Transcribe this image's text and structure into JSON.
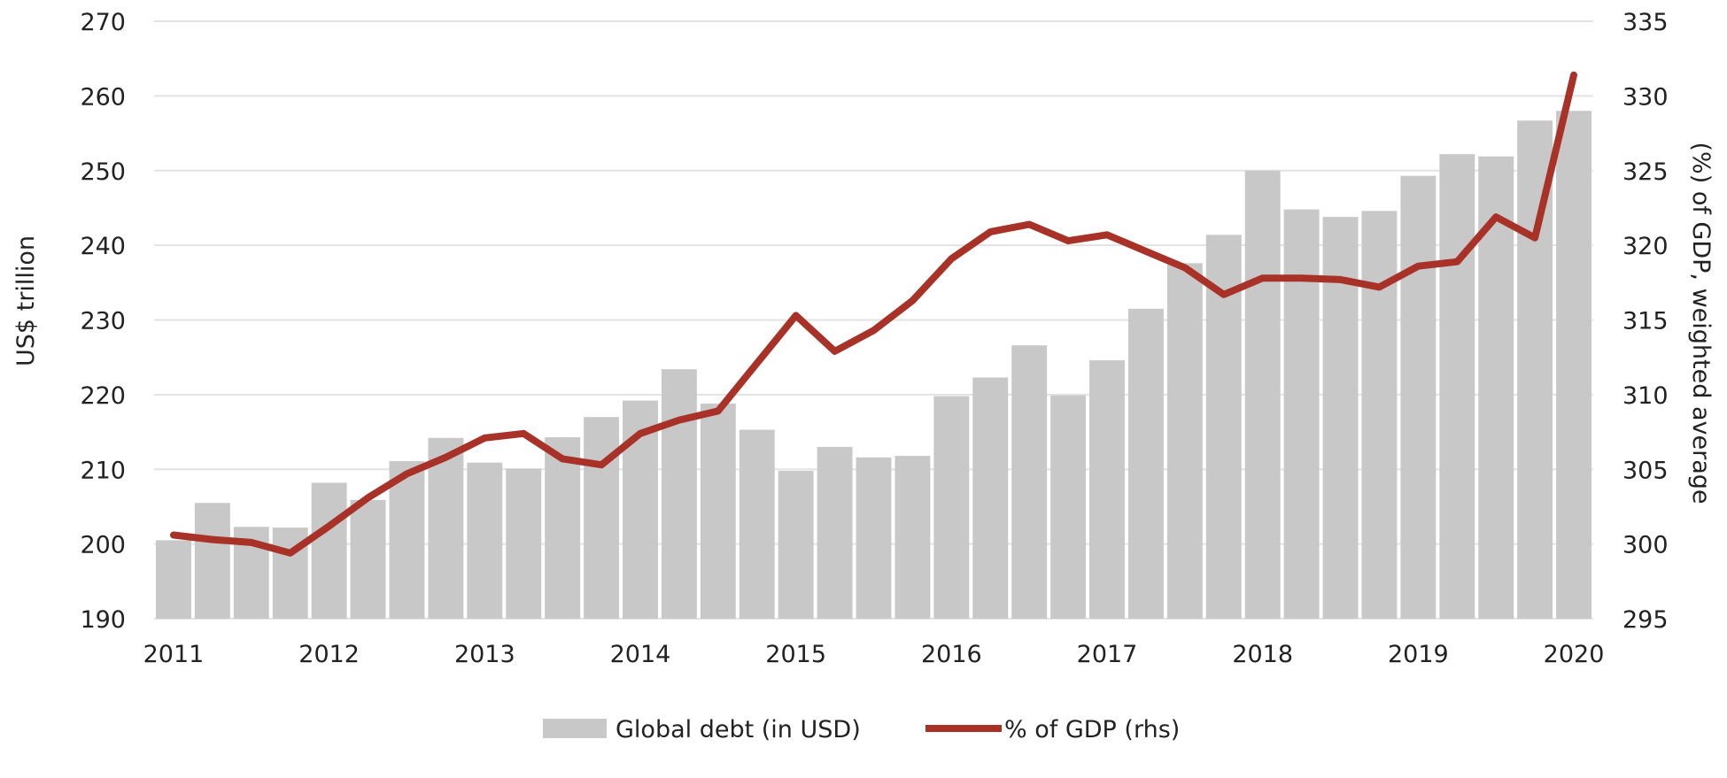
{
  "chart_data": {
    "type": "bar",
    "combo": "bar-line-dual-axis",
    "x_tick_labels": [
      "2011",
      "2012",
      "2013",
      "2014",
      "2015",
      "2016",
      "2017",
      "2018",
      "2019",
      "2020"
    ],
    "y_left": {
      "label": "US$ trillion",
      "lim": [
        190,
        270
      ],
      "ticks": [
        190,
        200,
        210,
        220,
        230,
        240,
        250,
        260,
        270
      ]
    },
    "y_right": {
      "label": "(%) of GDP, weighted average",
      "lim": [
        295,
        335
      ],
      "ticks": [
        295,
        300,
        305,
        310,
        315,
        320,
        325,
        330,
        335
      ]
    },
    "grid": true,
    "legend_position": "bottom-center",
    "series": [
      {
        "name": "Global debt (in USD)",
        "type": "bar",
        "axis": "left",
        "color": "#c8c8c8",
        "values": [
          200.5,
          205.5,
          202.3,
          202.2,
          208.2,
          205.9,
          211.1,
          214.2,
          210.9,
          210.1,
          214.3,
          217.0,
          219.2,
          223.4,
          218.8,
          215.3,
          209.8,
          213.0,
          211.6,
          211.8,
          219.8,
          222.3,
          226.6,
          219.9,
          224.6,
          231.5,
          237.6,
          241.4,
          250.0,
          244.8,
          243.8,
          244.6,
          249.3,
          252.2,
          251.9,
          256.7,
          258.0
        ]
      },
      {
        "name": "% of GDP (rhs)",
        "type": "line",
        "axis": "right",
        "color": "#a83227",
        "values": [
          300.6,
          300.3,
          300.1,
          299.4,
          301.2,
          303.1,
          304.7,
          305.8,
          307.1,
          307.4,
          305.7,
          305.3,
          307.4,
          308.3,
          308.9,
          312.1,
          315.3,
          312.9,
          314.3,
          316.3,
          319.1,
          320.9,
          321.4,
          320.3,
          320.7,
          319.6,
          318.5,
          316.7,
          317.8,
          317.8,
          317.7,
          317.2,
          318.6,
          318.9,
          321.9,
          320.5,
          331.4
        ]
      }
    ]
  }
}
